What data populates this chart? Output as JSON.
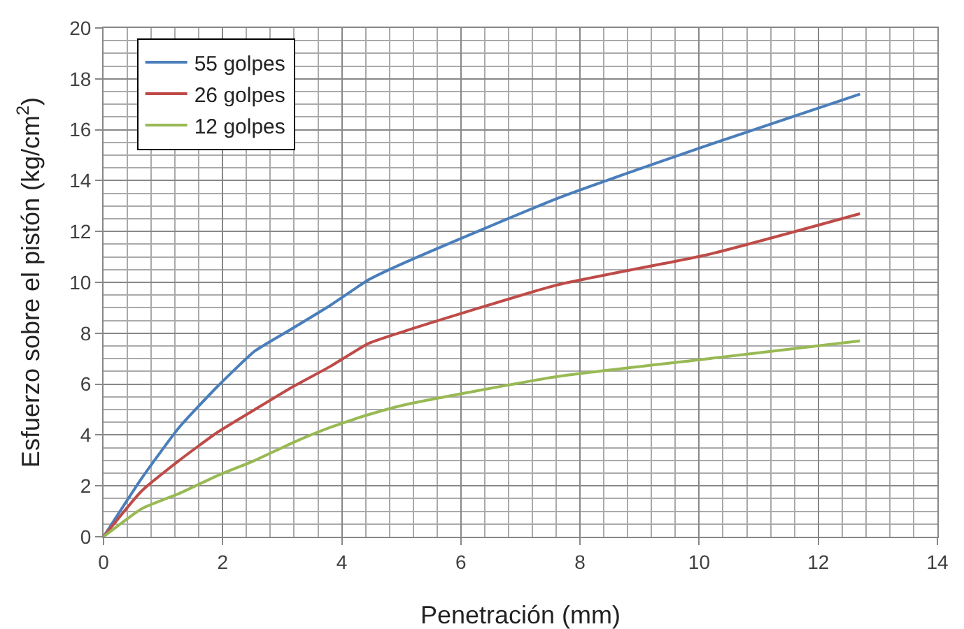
{
  "chart_data": {
    "type": "line",
    "xlabel": "Penetración (mm)",
    "ylabel": "Esfuerzo sobre el pistón (kg/cm$^{2}$)",
    "x": [
      0,
      0.64,
      1.27,
      1.91,
      2.54,
      3.18,
      3.81,
      4.45,
      5.08,
      7.62,
      10.16,
      12.7
    ],
    "series": [
      {
        "name": "55 golpes",
        "color": "#4a7ebb",
        "values": [
          0,
          2.3,
          4.3,
          5.9,
          7.3,
          8.2,
          9.1,
          10.1,
          10.8,
          13.3,
          15.4,
          17.4
        ]
      },
      {
        "name": "26 golpes",
        "color": "#be4b48",
        "values": [
          0,
          1.8,
          3.0,
          4.1,
          5.0,
          5.9,
          6.7,
          7.6,
          8.1,
          9.9,
          11.1,
          12.7
        ]
      },
      {
        "name": "12 golpes",
        "color": "#98b954",
        "values": [
          0,
          1.1,
          1.7,
          2.4,
          3.0,
          3.7,
          4.3,
          4.8,
          5.2,
          6.3,
          7.0,
          7.7
        ]
      }
    ],
    "xlim": [
      0,
      14
    ],
    "xticks": [
      0,
      2,
      4,
      6,
      8,
      10,
      12,
      14
    ],
    "ylim": [
      0,
      20
    ],
    "yticks": [
      0,
      2,
      4,
      6,
      8,
      10,
      12,
      14,
      16,
      18,
      20
    ],
    "grid": true,
    "legend": "top left",
    "marker": "none",
    "line_style": "solid"
  }
}
